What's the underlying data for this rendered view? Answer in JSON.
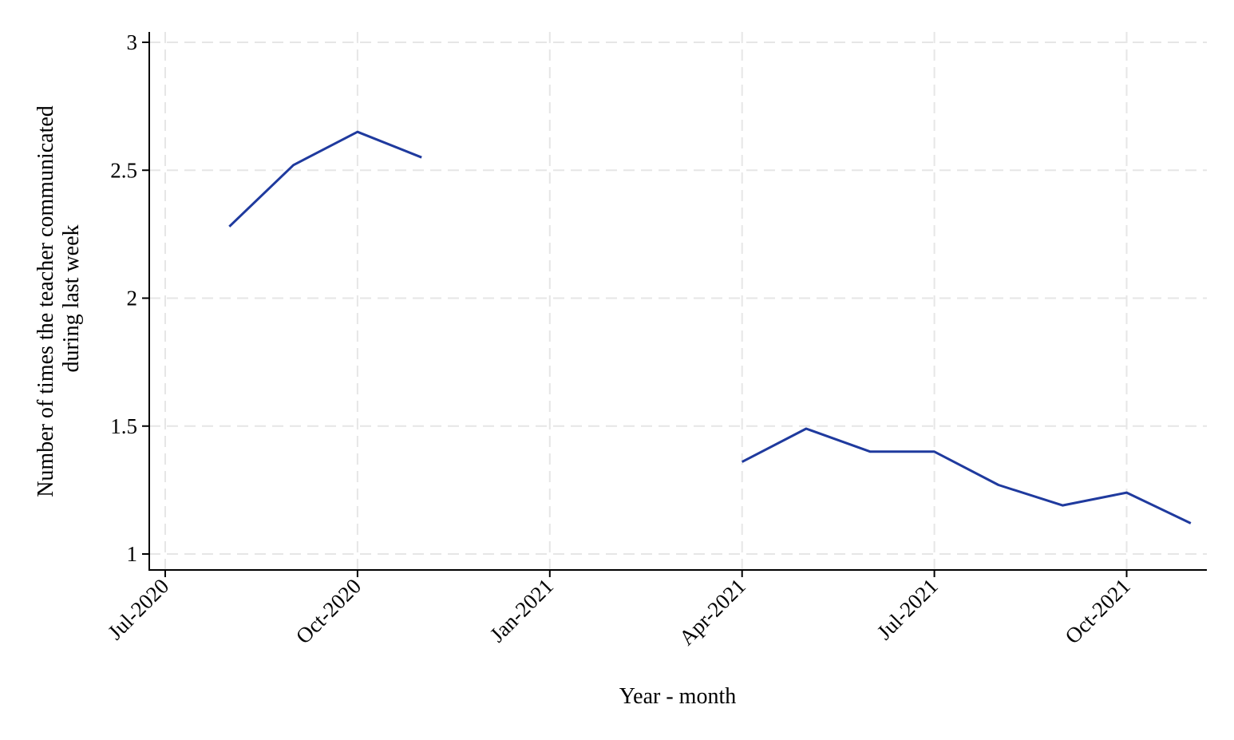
{
  "chart_data": {
    "type": "line",
    "title": "",
    "xlabel": "Year - month",
    "ylabel_lines": [
      "Number of times the teacher communicated",
      "during last week"
    ],
    "ylim": [
      1,
      3
    ],
    "xlim": [
      "2020-07",
      "2021-11"
    ],
    "grid": true,
    "yticks": [
      {
        "value": 1,
        "label": "1"
      },
      {
        "value": 1.5,
        "label": "1.5"
      },
      {
        "value": 2,
        "label": "2"
      },
      {
        "value": 2.5,
        "label": "2.5"
      },
      {
        "value": 3,
        "label": "3"
      }
    ],
    "xticks": [
      {
        "value": "2020-07",
        "label": "Jul-2020"
      },
      {
        "value": "2020-10",
        "label": "Oct-2020"
      },
      {
        "value": "2021-01",
        "label": "Jan-2021"
      },
      {
        "value": "2021-04",
        "label": "Apr-2021"
      },
      {
        "value": "2021-07",
        "label": "Jul-2021"
      },
      {
        "value": "2021-10",
        "label": "Oct-2021"
      }
    ],
    "series": [
      {
        "color": "#1f3a9e",
        "segments": [
          [
            {
              "x": "2020-08",
              "y": 2.28
            },
            {
              "x": "2020-09",
              "y": 2.52
            },
            {
              "x": "2020-10",
              "y": 2.65
            },
            {
              "x": "2020-11",
              "y": 2.55
            }
          ],
          [
            {
              "x": "2021-04",
              "y": 1.36
            },
            {
              "x": "2021-05",
              "y": 1.49
            },
            {
              "x": "2021-06",
              "y": 1.4
            },
            {
              "x": "2021-07",
              "y": 1.4
            },
            {
              "x": "2021-08",
              "y": 1.27
            },
            {
              "x": "2021-09",
              "y": 1.19
            },
            {
              "x": "2021-10",
              "y": 1.24
            },
            {
              "x": "2021-11",
              "y": 1.12
            }
          ]
        ]
      }
    ]
  }
}
